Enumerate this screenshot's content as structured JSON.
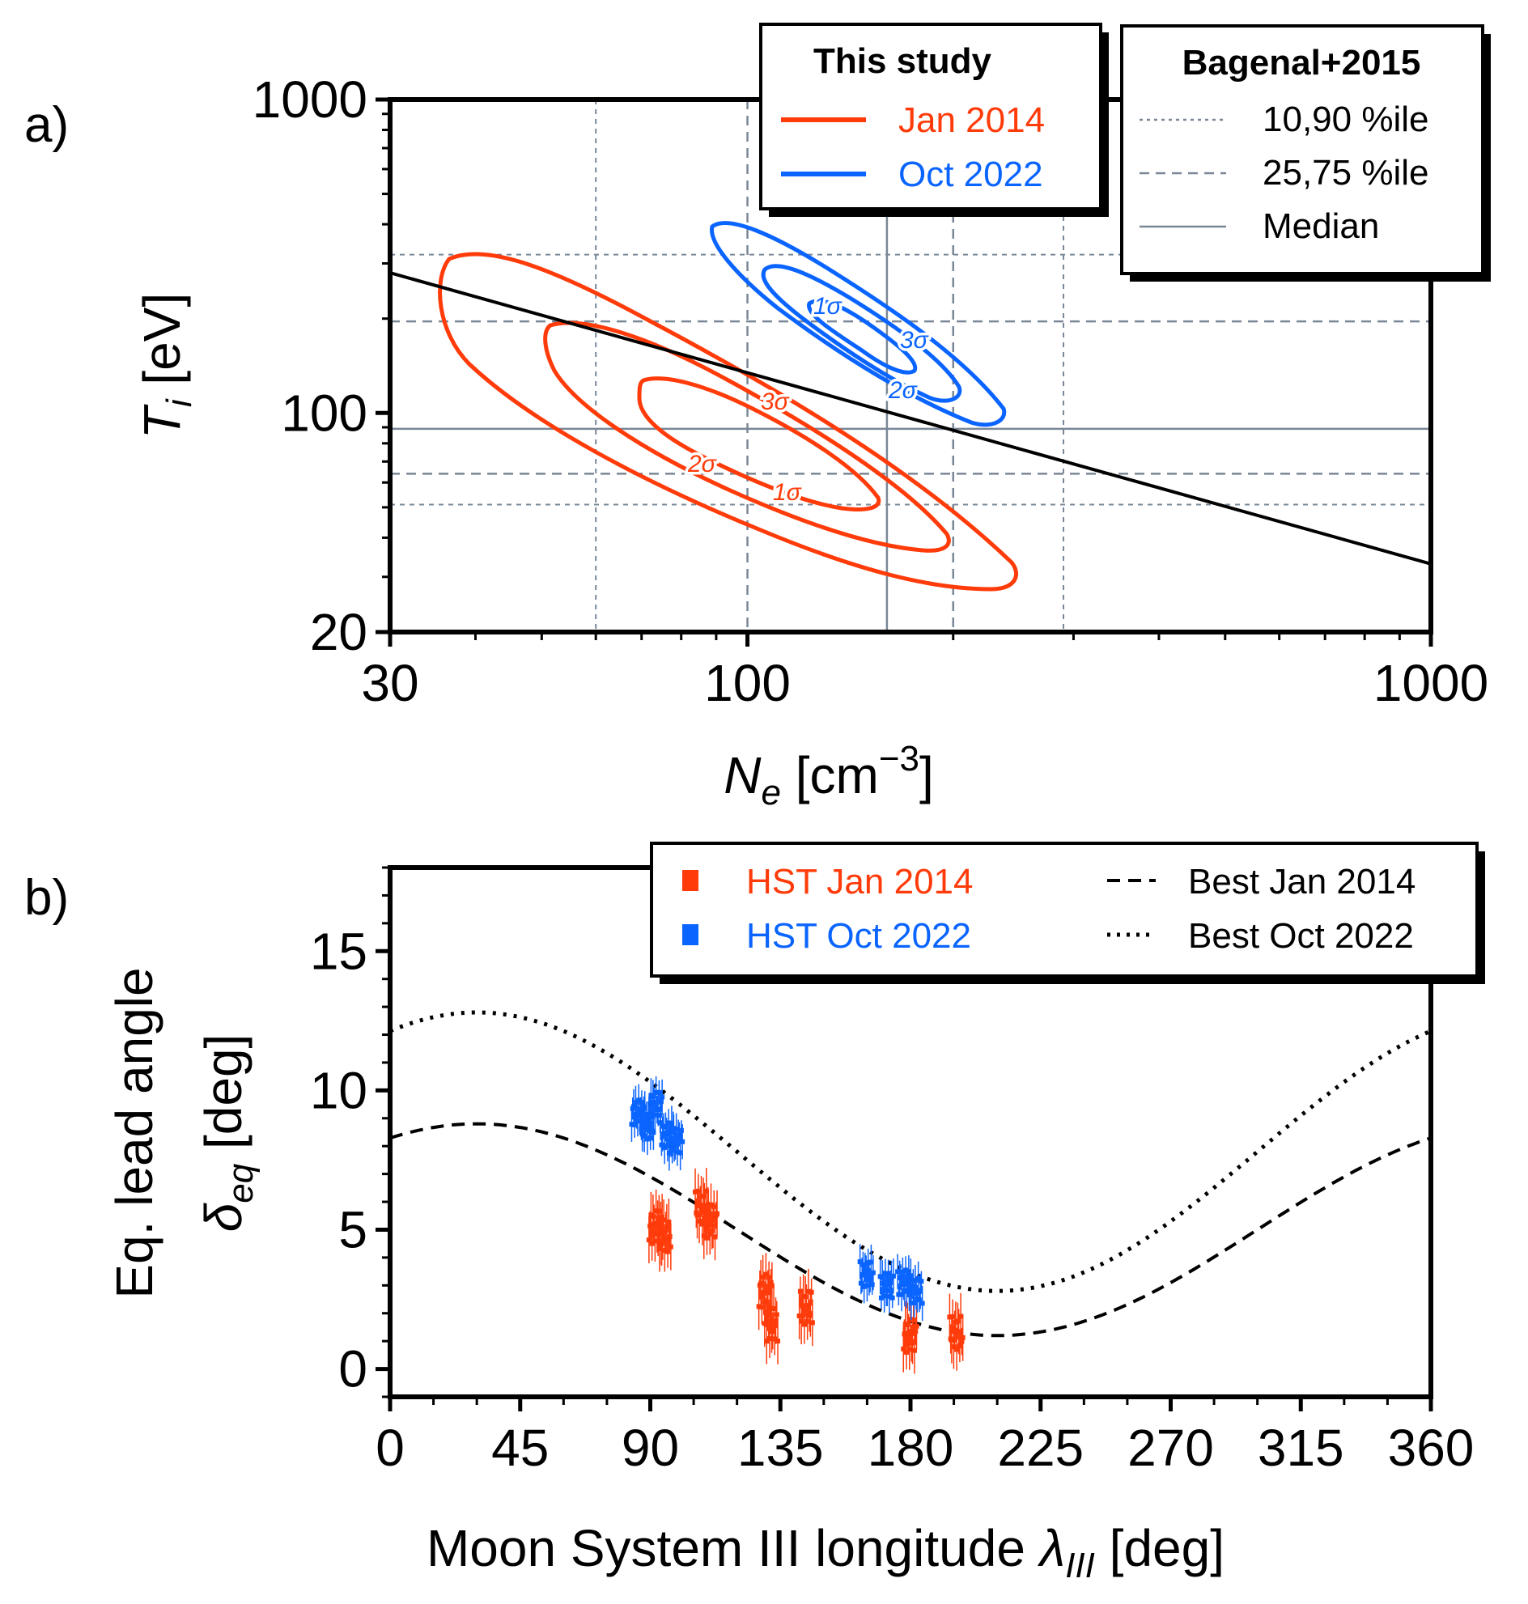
{
  "colors": {
    "jan": "#ff3b0a",
    "oct": "#0a64ff",
    "grid": "#7a8796",
    "axis": "#000000"
  },
  "panel_a": {
    "label": "a)",
    "xlabel_main": "N",
    "xlabel_sub": "e",
    "xlabel_unit": " [cm",
    "xlabel_sup": "−3",
    "xlabel_close": "]",
    "ylabel_main": "T",
    "ylabel_sub": "i",
    "ylabel_unit": " [eV]",
    "xticks": [
      "30",
      "100",
      "1000"
    ],
    "yticks": [
      "20",
      "100",
      "1000"
    ],
    "legend_left": {
      "title": "This study",
      "items": [
        {
          "label": "Jan 2014",
          "color": "#ff3b0a"
        },
        {
          "label": "Oct 2022",
          "color": "#0a64ff"
        }
      ]
    },
    "legend_right": {
      "title": "Bagenal+2015",
      "items": [
        {
          "label": "10,90 %ile",
          "style": "dotted"
        },
        {
          "label": "25,75 %ile",
          "style": "dashed"
        },
        {
          "label": "Median",
          "style": "solid"
        }
      ]
    },
    "contour_labels": {
      "jan": [
        "3σ",
        "2σ",
        "1σ"
      ],
      "oct": [
        "1σ",
        "3σ",
        "2σ"
      ]
    }
  },
  "panel_b": {
    "label": "b)",
    "ylabel_line1": "Eq. lead angle",
    "ylabel_main": "δ",
    "ylabel_sub": "eq",
    "ylabel_unit": " [deg]",
    "xlabel_text": "Moon System III longitude ",
    "xlabel_main": "λ",
    "xlabel_sub": "III",
    "xlabel_unit": " [deg]",
    "xticks": [
      "0",
      "45",
      "90",
      "135",
      "180",
      "225",
      "270",
      "315",
      "360"
    ],
    "yticks": [
      "0",
      "5",
      "10",
      "15"
    ],
    "legend": {
      "items": [
        {
          "label": "HST Jan 2014",
          "color": "#ff3b0a"
        },
        {
          "label": "HST Oct 2022",
          "color": "#0a64ff"
        },
        {
          "label": "Best Jan 2014",
          "style": "dashed"
        },
        {
          "label": "Best Oct 2022",
          "style": "dotted"
        }
      ]
    }
  },
  "chart_data": [
    {
      "type": "line",
      "panel": "a",
      "xlabel": "Ne [cm−3]",
      "ylabel": "Ti [eV]",
      "xscale": "log",
      "yscale": "log",
      "xlim": [
        30,
        1000
      ],
      "ylim": [
        20,
        1000
      ],
      "series": [
        {
          "name": "Jan 2014",
          "kind": "contour",
          "levels": [
            "1σ",
            "2σ",
            "3σ"
          ]
        },
        {
          "name": "Oct 2022",
          "kind": "contour",
          "levels": [
            "1σ",
            "2σ",
            "3σ"
          ]
        }
      ],
      "unnamed_line": {
        "x": [
          30,
          1000
        ],
        "y": [
          280,
          33
        ]
      },
      "reference_lines_x": {
        "10,90 %ile": [
          60,
          290
        ],
        "25,75 %ile": [
          100,
          200
        ],
        "Median": [
          160
        ]
      },
      "reference_lines_y": {
        "10,90 %ile": [
          51,
          320
        ],
        "25,75 %ile": [
          64,
          196
        ],
        "Median": [
          89
        ]
      }
    },
    {
      "type": "scatter",
      "panel": "b",
      "xlabel": "Moon System III longitude λIII [deg]",
      "ylabel": "Eq. lead angle δeq [deg]",
      "xlim": [
        0,
        360
      ],
      "ylim": [
        -1,
        18
      ],
      "series": [
        {
          "name": "HST Jan 2014",
          "points": [
            [
              92,
              5.1
            ],
            [
              95,
              4.8
            ],
            [
              108,
              5.8
            ],
            [
              111,
              5.3
            ],
            [
              130,
              2.8
            ],
            [
              132,
              1.6
            ],
            [
              144,
              2.2
            ],
            [
              180,
              1.2
            ],
            [
              196,
              1.3
            ]
          ]
        },
        {
          "name": "HST Oct 2022",
          "points": [
            [
              86,
              9.2
            ],
            [
              89,
              8.7
            ],
            [
              92,
              9.5
            ],
            [
              96,
              8.4
            ],
            [
              99,
              8.2
            ],
            [
              165,
              3.4
            ],
            [
              172,
              3.0
            ],
            [
              178,
              3.1
            ],
            [
              182,
              2.8
            ]
          ]
        },
        {
          "name": "Best Jan 2014",
          "amplitude": 3.8,
          "offset": 5.0,
          "phase_max_deg": 30,
          "line": "dashed"
        },
        {
          "name": "Best Oct 2022",
          "amplitude": 5.0,
          "offset": 7.8,
          "phase_max_deg": 30,
          "line": "dotted"
        }
      ]
    }
  ]
}
